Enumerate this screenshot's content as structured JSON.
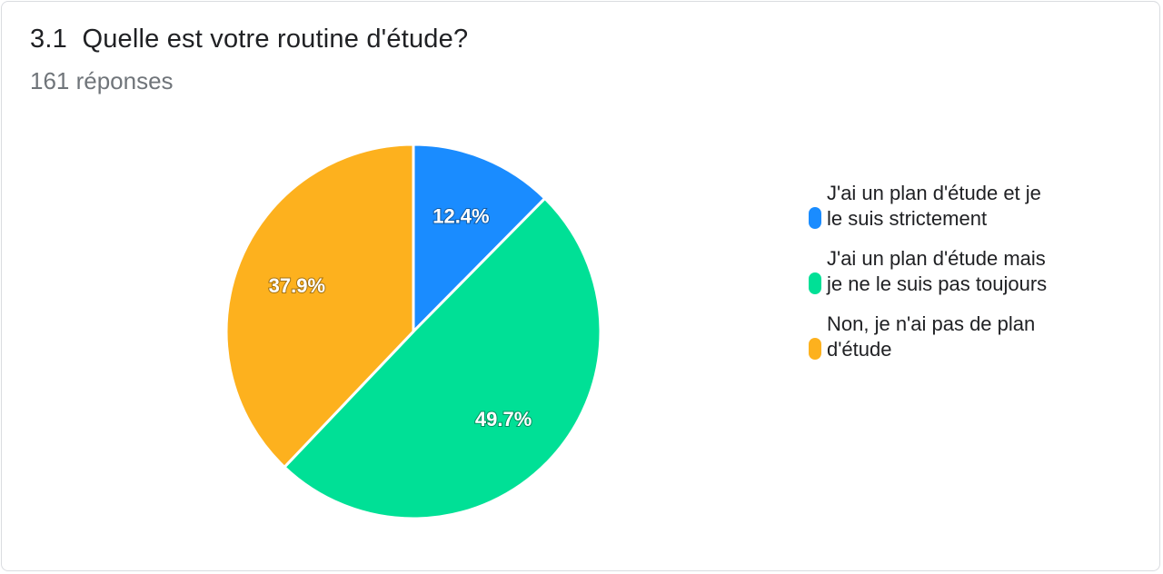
{
  "card": {
    "question_number": "3.1",
    "question_title": "Quelle est votre routine d'étude?",
    "response_count": "161 réponses"
  },
  "chart_data": {
    "type": "pie",
    "title": "Quelle est votre routine d'étude?",
    "slices": [
      {
        "label": "J'ai un plan d'étude et je le suis strictement",
        "legend_lines": [
          "J'ai un plan d'étude et je",
          "le suis strictement"
        ],
        "value": 12.4,
        "data_label": "12.4%",
        "color": "#1a8cff"
      },
      {
        "label": "J'ai un plan d'étude mais je ne le suis pas toujours",
        "legend_lines": [
          "J'ai un plan d'étude mais",
          "je ne le suis pas toujours"
        ],
        "value": 49.7,
        "data_label": "49.7%",
        "color": "#00e096"
      },
      {
        "label": "Non, je n'ai pas de plan d'étude",
        "legend_lines": [
          "Non, je n'ai pas de plan",
          "d'étude"
        ],
        "value": 37.9,
        "data_label": "37.9%",
        "color": "#fdb11e"
      }
    ],
    "legend_position": "right"
  }
}
